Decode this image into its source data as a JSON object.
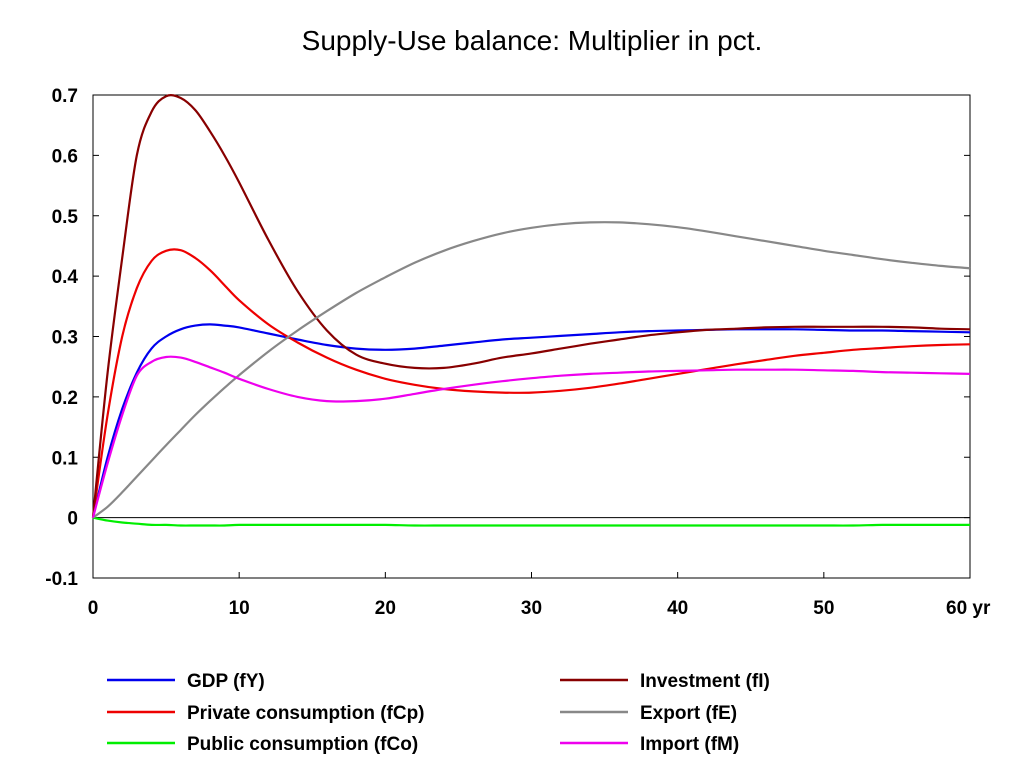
{
  "chart_data": {
    "type": "line",
    "title": "Supply-Use balance: Multiplier in pct.",
    "xlabel": "",
    "ylabel": "",
    "x_unit_label": "yr",
    "xlim": [
      0,
      60
    ],
    "ylim": [
      -0.1,
      0.7
    ],
    "x_ticks": [
      0,
      10,
      20,
      30,
      40,
      50,
      60
    ],
    "x_tick_labels": [
      "0",
      "10",
      "20",
      "30",
      "40",
      "50",
      "60"
    ],
    "y_ticks": [
      -0.1,
      0,
      0.1,
      0.2,
      0.3,
      0.4,
      0.5,
      0.6,
      0.7
    ],
    "y_tick_labels": [
      "-0.1",
      "0",
      "0.1",
      "0.2",
      "0.3",
      "0.4",
      "0.5",
      "0.6",
      "0.7"
    ],
    "grid": false,
    "legend_position": "bottom",
    "x": [
      0,
      1,
      2,
      3,
      4,
      5,
      6,
      7,
      8,
      9,
      10,
      12,
      14,
      16,
      18,
      20,
      22,
      24,
      26,
      28,
      30,
      32,
      34,
      36,
      38,
      40,
      42,
      44,
      46,
      48,
      50,
      52,
      54,
      56,
      58,
      60
    ],
    "series": [
      {
        "name": "GDP (fY)",
        "color": "#0000ee",
        "values": [
          0.0,
          0.1,
          0.18,
          0.24,
          0.28,
          0.3,
          0.312,
          0.318,
          0.32,
          0.318,
          0.315,
          0.305,
          0.295,
          0.286,
          0.28,
          0.278,
          0.28,
          0.285,
          0.29,
          0.295,
          0.298,
          0.301,
          0.304,
          0.307,
          0.309,
          0.31,
          0.311,
          0.312,
          0.312,
          0.312,
          0.311,
          0.31,
          0.31,
          0.309,
          0.308,
          0.307
        ]
      },
      {
        "name": "Private consumption (fCp)",
        "color": "#ee0000",
        "values": [
          0.0,
          0.17,
          0.3,
          0.38,
          0.425,
          0.442,
          0.443,
          0.43,
          0.41,
          0.385,
          0.36,
          0.32,
          0.29,
          0.265,
          0.245,
          0.23,
          0.22,
          0.213,
          0.209,
          0.207,
          0.207,
          0.21,
          0.215,
          0.222,
          0.23,
          0.238,
          0.246,
          0.254,
          0.261,
          0.268,
          0.273,
          0.278,
          0.281,
          0.284,
          0.286,
          0.287
        ]
      },
      {
        "name": "Public consumption (fCo)",
        "color": "#00ee00",
        "values": [
          0.0,
          -0.005,
          -0.008,
          -0.01,
          -0.012,
          -0.012,
          -0.013,
          -0.013,
          -0.013,
          -0.013,
          -0.012,
          -0.012,
          -0.012,
          -0.012,
          -0.012,
          -0.012,
          -0.013,
          -0.013,
          -0.013,
          -0.013,
          -0.013,
          -0.013,
          -0.013,
          -0.013,
          -0.013,
          -0.013,
          -0.013,
          -0.013,
          -0.013,
          -0.013,
          -0.013,
          -0.013,
          -0.012,
          -0.012,
          -0.012,
          -0.012
        ]
      },
      {
        "name": "Investment (fI)",
        "color": "#880000",
        "values": [
          0.0,
          0.24,
          0.43,
          0.6,
          0.672,
          0.698,
          0.695,
          0.675,
          0.64,
          0.6,
          0.555,
          0.46,
          0.375,
          0.31,
          0.27,
          0.255,
          0.248,
          0.248,
          0.255,
          0.265,
          0.272,
          0.28,
          0.288,
          0.295,
          0.302,
          0.307,
          0.311,
          0.313,
          0.315,
          0.316,
          0.316,
          0.316,
          0.316,
          0.315,
          0.313,
          0.312
        ]
      },
      {
        "name": "Export (fE)",
        "color": "#888888",
        "values": [
          0.0,
          0.018,
          0.042,
          0.068,
          0.094,
          0.12,
          0.145,
          0.17,
          0.193,
          0.215,
          0.236,
          0.275,
          0.31,
          0.342,
          0.372,
          0.398,
          0.422,
          0.442,
          0.458,
          0.471,
          0.48,
          0.486,
          0.489,
          0.489,
          0.486,
          0.481,
          0.474,
          0.466,
          0.458,
          0.45,
          0.442,
          0.435,
          0.428,
          0.422,
          0.417,
          0.413
        ]
      },
      {
        "name": "Import (fM)",
        "color": "#ee00ee",
        "values": [
          0.0,
          0.09,
          0.17,
          0.235,
          0.258,
          0.266,
          0.265,
          0.258,
          0.249,
          0.24,
          0.23,
          0.213,
          0.2,
          0.193,
          0.193,
          0.197,
          0.205,
          0.213,
          0.22,
          0.226,
          0.231,
          0.235,
          0.238,
          0.24,
          0.242,
          0.243,
          0.244,
          0.245,
          0.245,
          0.245,
          0.244,
          0.243,
          0.241,
          0.24,
          0.239,
          0.238
        ]
      }
    ],
    "legend": {
      "columns": [
        [
          "GDP (fY)",
          "Private consumption (fCp)",
          "Public consumption (fCo)"
        ],
        [
          "Investment (fI)",
          "Export (fE)",
          "Import (fM)"
        ]
      ]
    }
  }
}
